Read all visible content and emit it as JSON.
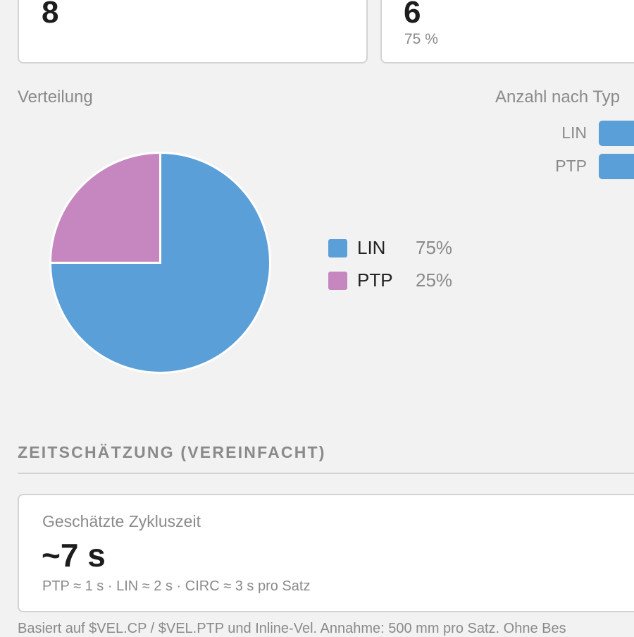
{
  "summary": {
    "card1_value": "8",
    "card2_value": "6",
    "card2_sub": "75 %"
  },
  "distribution": {
    "label": "Verteilung",
    "legend": [
      {
        "name": "LIN",
        "pct": "75%",
        "color": "#5a9fd8"
      },
      {
        "name": "PTP",
        "pct": "25%",
        "color": "#c687c0"
      }
    ]
  },
  "by_type": {
    "label": "Anzahl nach Typ",
    "bars": [
      {
        "name": "LIN",
        "color": "#5a9fd8"
      },
      {
        "name": "PTP",
        "color": "#5a9fd8"
      }
    ]
  },
  "chart_data": {
    "type": "pie",
    "slices": [
      {
        "label": "LIN",
        "value": 75,
        "color": "#5a9fd8"
      },
      {
        "label": "PTP",
        "value": 25,
        "color": "#c687c0"
      }
    ]
  },
  "time_estimate": {
    "heading": "ZEITSCHÄTZUNG (VEREINFACHT)",
    "label": "Geschätzte Zykluszeit",
    "value": "~7 s",
    "detail": "PTP ≈ 1 s · LIN ≈ 2 s · CIRC ≈ 3 s pro Satz",
    "footnote": "Basiert auf $VEL.CP / $VEL.PTP und Inline-Vel. Annahme: 500 mm pro Satz. Ohne Bes"
  }
}
